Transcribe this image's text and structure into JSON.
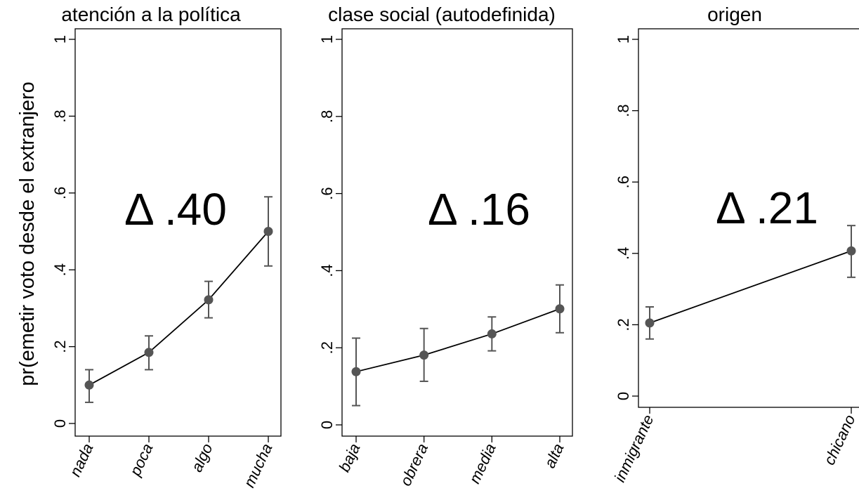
{
  "ylabel": "pr(emetir voto desde el extranjero",
  "chart_data": [
    {
      "type": "line",
      "title": "atención a la política",
      "categories": [
        "nada",
        "poca",
        "algo",
        "mucha"
      ],
      "values": [
        0.1,
        0.185,
        0.322,
        0.5
      ],
      "ci_low": [
        0.055,
        0.14,
        0.275,
        0.41
      ],
      "ci_high": [
        0.14,
        0.228,
        0.37,
        0.59
      ],
      "annotation": "Δ .40",
      "ylim": [
        0,
        1
      ],
      "yticks": [
        0,
        0.2,
        0.4,
        0.6,
        0.8,
        1
      ],
      "ytick_labels": [
        "0",
        ".2",
        ".4",
        ".6",
        ".8",
        "1"
      ]
    },
    {
      "type": "line",
      "title": "clase social (autodefinida)",
      "categories": [
        "baja",
        "obrera",
        "media",
        "alta"
      ],
      "values": [
        0.138,
        0.181,
        0.236,
        0.301
      ],
      "ci_low": [
        0.05,
        0.113,
        0.192,
        0.239
      ],
      "ci_high": [
        0.225,
        0.25,
        0.28,
        0.363
      ],
      "annotation": "Δ .16",
      "ylim": [
        0,
        1
      ],
      "yticks": [
        0,
        0.2,
        0.4,
        0.6,
        0.8,
        1
      ],
      "ytick_labels": [
        "0",
        ".2",
        ".4",
        ".6",
        ".8",
        "1"
      ]
    },
    {
      "type": "line",
      "title": "origen",
      "categories": [
        "inmigrante",
        "chicano"
      ],
      "values": [
        0.205,
        0.407
      ],
      "ci_low": [
        0.16,
        0.333
      ],
      "ci_high": [
        0.25,
        0.478
      ],
      "annotation": "Δ .21",
      "ylim": [
        0,
        1
      ],
      "yticks": [
        0,
        0.2,
        0.4,
        0.6,
        0.8,
        1
      ],
      "ytick_labels": [
        "0",
        ".2",
        ".4",
        ".6",
        ".8",
        "1"
      ]
    }
  ]
}
